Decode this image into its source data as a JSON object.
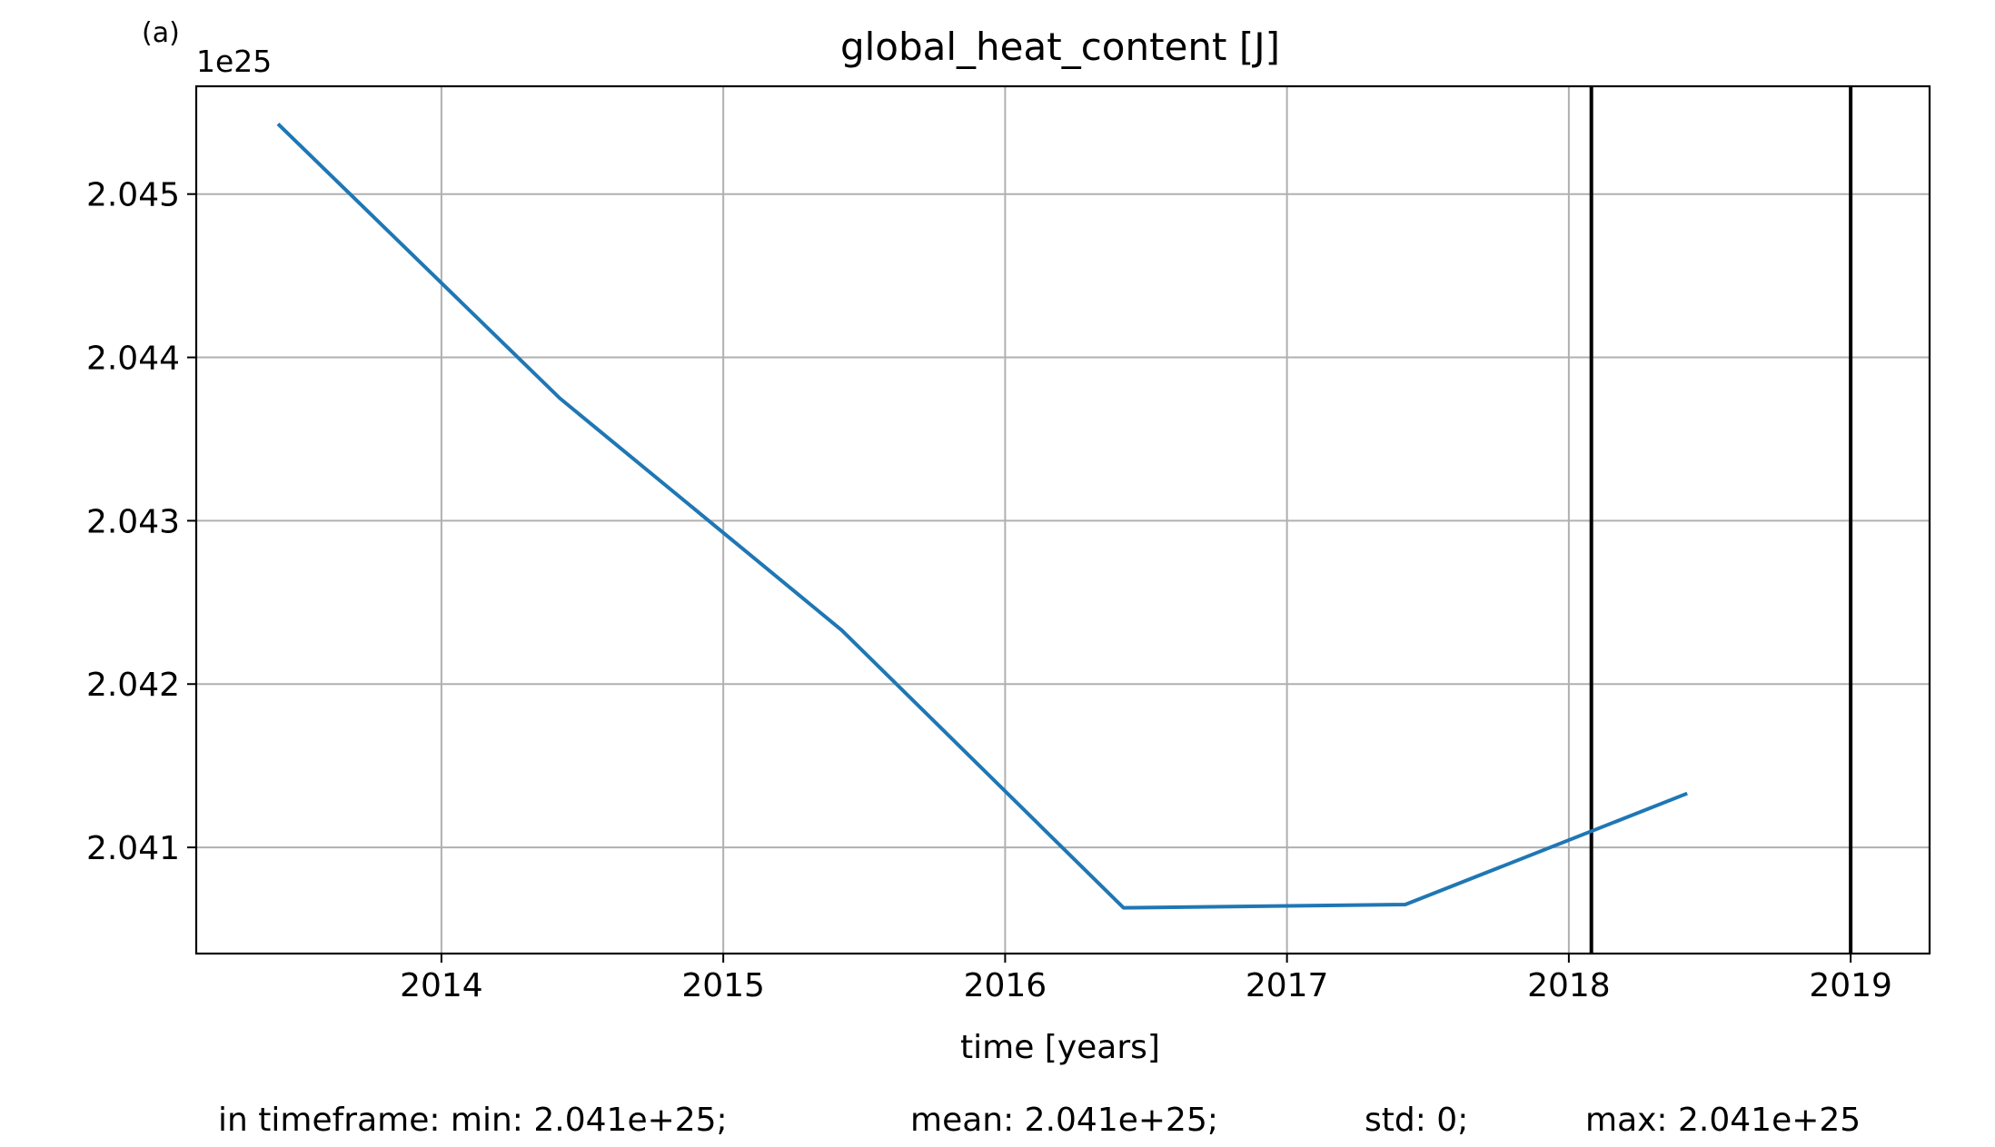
{
  "panel_label": "(a)",
  "stats_line": {
    "min": "in timeframe: min: 2.041e+25;",
    "mean": "mean: 2.041e+25;",
    "std": "std: 0;",
    "max": "max: 2.041e+25"
  },
  "colors": {
    "series": "#1f77b4",
    "grid": "#b0b0b0",
    "axes": "#000000",
    "vlines": "#000000"
  },
  "chart_data": {
    "type": "line",
    "title": "global_heat_content [J]",
    "xlabel": "time [years]",
    "ylabel": "",
    "y_offset_label": "1e25",
    "xlim": [
      2013.13,
      2019.28
    ],
    "ylim": [
      2.04035,
      2.04566
    ],
    "xticks": [
      2014,
      2015,
      2016,
      2017,
      2018,
      2019
    ],
    "xtick_labels": [
      "2014",
      "2015",
      "2016",
      "2017",
      "2018",
      "2019"
    ],
    "yticks": [
      2.041,
      2.042,
      2.043,
      2.044,
      2.045
    ],
    "ytick_labels": [
      "2.041",
      "2.042",
      "2.043",
      "2.044",
      "2.045"
    ],
    "grid": true,
    "series": [
      {
        "x": [
          2013.42,
          2014.42,
          2015.42,
          2016.42,
          2017.42,
          2018.42
        ],
        "y": [
          2.04543,
          2.04375,
          2.04233,
          2.04063,
          2.04065,
          2.04133
        ]
      }
    ],
    "vertical_lines_x": [
      2018.08,
      2019.0
    ]
  }
}
